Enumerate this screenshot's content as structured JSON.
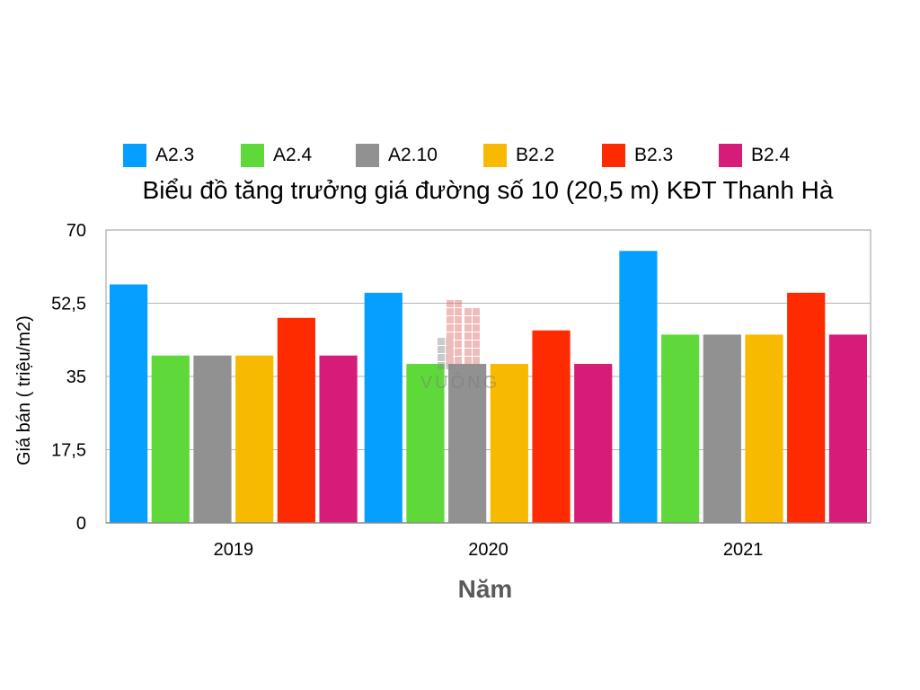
{
  "chart_data": {
    "type": "bar",
    "title": "Biểu đồ tăng trưởng giá đường số 10 (20,5 m) KĐT Thanh Hà",
    "xlabel": "Năm",
    "ylabel": "Giá bán ( triệu/m2)",
    "categories": [
      "2019",
      "2020",
      "2021"
    ],
    "ylim": [
      0,
      70
    ],
    "yticks": [
      "0",
      "17,5",
      "35",
      "52,5",
      "70"
    ],
    "ytick_values": [
      0,
      17.5,
      35,
      52.5,
      70
    ],
    "grid": true,
    "legend_position": "top",
    "series": [
      {
        "name": "A2.3",
        "color": "#05A0FF",
        "values": [
          57,
          55,
          65
        ]
      },
      {
        "name": "A2.4",
        "color": "#5FD93A",
        "values": [
          40,
          38,
          45
        ]
      },
      {
        "name": "A2.10",
        "color": "#919191",
        "values": [
          40,
          38,
          45
        ]
      },
      {
        "name": "B2.2",
        "color": "#F8BA00",
        "values": [
          40,
          38,
          45
        ]
      },
      {
        "name": "B2.3",
        "color": "#FF2B00",
        "values": [
          49,
          46,
          55
        ]
      },
      {
        "name": "B2.4",
        "color": "#D61C78",
        "values": [
          40,
          38,
          45
        ]
      }
    ]
  },
  "watermark": {
    "text": "VUÔNG"
  }
}
